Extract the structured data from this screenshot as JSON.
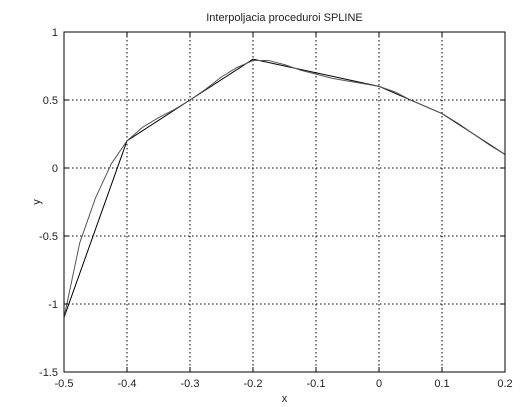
{
  "chart_data": {
    "type": "line",
    "title": "Interpoljacia proceduroi SPLINE",
    "xlabel": "x",
    "ylabel": "y",
    "xlim": [
      -0.5,
      0.2
    ],
    "ylim": [
      -1.5,
      1
    ],
    "grid": true,
    "xticks": [
      -0.5,
      -0.4,
      -0.3,
      -0.2,
      -0.1,
      0,
      0.1,
      0.2
    ],
    "xtick_labels": [
      "-0.5",
      "-0.4",
      "-0.3",
      "-0.2",
      "-0.1",
      "0",
      "0.1",
      "0.2"
    ],
    "yticks": [
      -1.5,
      -1,
      -0.5,
      0,
      0.5,
      1
    ],
    "ytick_labels": [
      "-1.5",
      "-1",
      "-0.5",
      "0",
      "0.5",
      "1"
    ],
    "series": [
      {
        "x": [
          -0.5,
          -0.4,
          -0.3,
          -0.2,
          0,
          0.1,
          0.2
        ],
        "y": [
          -1.1,
          0.2,
          0.5,
          0.8,
          0.6,
          0.4,
          0.1
        ],
        "color": "#000000"
      },
      {
        "x": [
          -0.5,
          -0.475,
          -0.45,
          -0.425,
          -0.4,
          -0.375,
          -0.35,
          -0.325,
          -0.3,
          -0.275,
          -0.25,
          -0.225,
          -0.2,
          -0.175,
          -0.15,
          -0.125,
          -0.1,
          -0.075,
          -0.05,
          -0.025,
          0,
          0.025,
          0.05,
          0.075,
          0.1,
          0.125,
          0.15,
          0.175,
          0.2
        ],
        "y": [
          -1.1,
          -0.55,
          -0.22,
          0.03,
          0.2,
          0.3,
          0.37,
          0.43,
          0.5,
          0.58,
          0.67,
          0.74,
          0.79,
          0.79,
          0.76,
          0.72,
          0.69,
          0.66,
          0.64,
          0.62,
          0.6,
          0.56,
          0.5,
          0.45,
          0.4,
          0.33,
          0.25,
          0.17,
          0.1
        ],
        "color": "#555555"
      }
    ]
  }
}
